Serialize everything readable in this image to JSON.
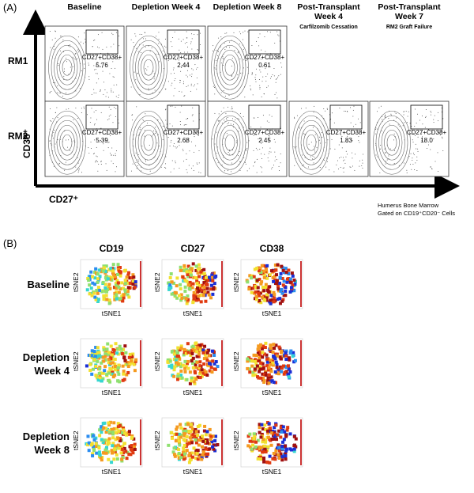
{
  "panel_a": {
    "label": "(A)",
    "columns": [
      {
        "title": [
          "Baseline"
        ]
      },
      {
        "title": [
          "Depletion Week 4"
        ]
      },
      {
        "title": [
          "Depletion Week 8"
        ]
      },
      {
        "title": [
          "Post-Transplant",
          "Week 4"
        ],
        "subtitle": "Carfilzomib Cessation"
      },
      {
        "title": [
          "Post-Transplant",
          "Week 7"
        ],
        "subtitle": "RM2 Graft Failure"
      }
    ],
    "rows": [
      {
        "label": "RM1",
        "gates": [
          {
            "label": "CD27+CD38+",
            "value": "5.76"
          },
          {
            "label": "CD27+CD38+",
            "value": "2.44"
          },
          {
            "label": "CD27+CD38+",
            "value": "0.61"
          }
        ]
      },
      {
        "label": "RM2",
        "gates": [
          {
            "label": "CD27+CD38+",
            "value": "5.39"
          },
          {
            "label": "CD27+CD38+",
            "value": "2.68"
          },
          {
            "label": "CD27+CD38+",
            "value": "2.45"
          },
          {
            "label": "CD27+CD38+",
            "value": "1.83"
          },
          {
            "label": "CD27+CD38+",
            "value": "18.0"
          }
        ]
      }
    ],
    "y_axis": "CD38⁺",
    "x_axis": "CD27⁺",
    "note": [
      "Humerus Bone Marrow",
      "Gated on CD19⁺CD20⁻ Cells"
    ]
  },
  "panel_b": {
    "label": "(B)",
    "markers": [
      "CD19",
      "CD27",
      "CD38"
    ],
    "rows": [
      [
        "Baseline"
      ],
      [
        "Depletion",
        "Week 4"
      ],
      [
        "Depletion",
        "Week 8"
      ]
    ],
    "x_axis": "tSNE1",
    "y_axis": "tSNE2"
  }
}
